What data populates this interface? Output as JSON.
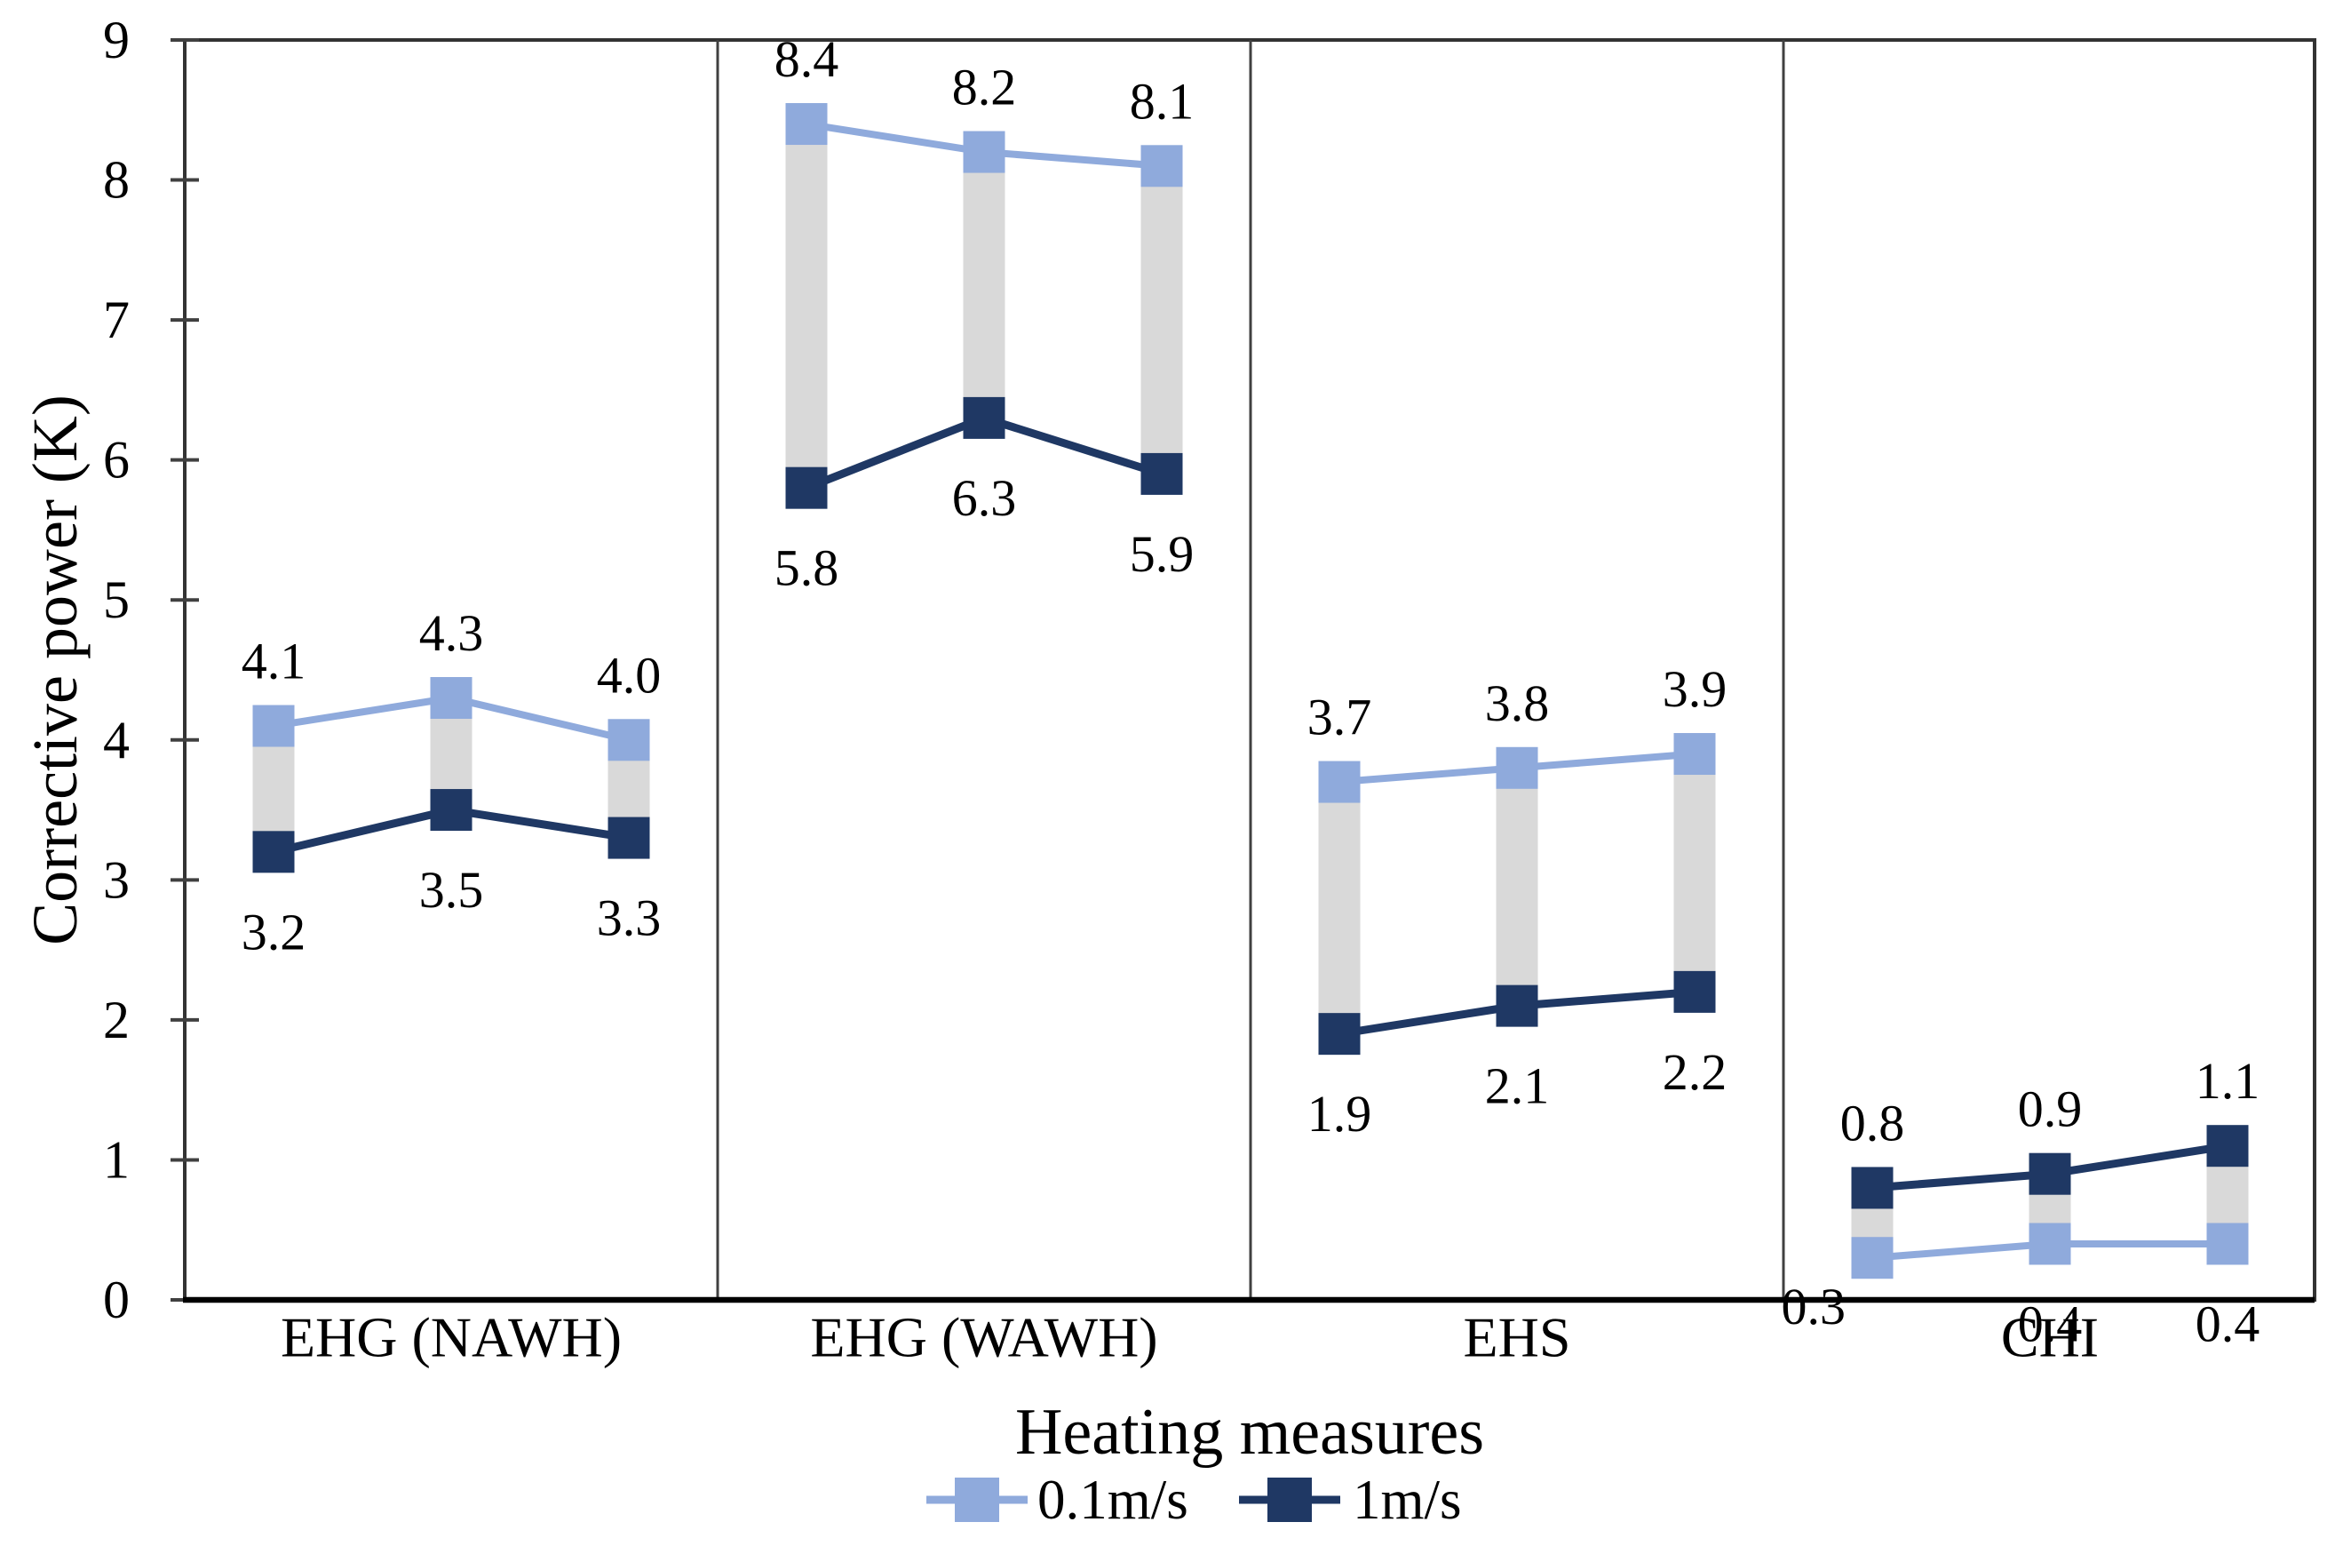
{
  "chart_data": {
    "type": "line",
    "title": "",
    "xlabel": "Heating measures",
    "ylabel": "Corrective power (K)",
    "ylim": [
      0,
      9
    ],
    "ytick_step": 1,
    "ytick_labels": [
      "0",
      "1",
      "2",
      "3",
      "4",
      "5",
      "6",
      "7",
      "8",
      "9"
    ],
    "grid": false,
    "panel_dividers": true,
    "legend_position": "bottom",
    "categories": [
      "EHG (NAWH)",
      "EHG (WAWH)",
      "EHS",
      "CHI"
    ],
    "points_per_category": 3,
    "series": [
      {
        "name": "0.1m/s",
        "color": "#8faadc",
        "marker": "square",
        "values": [
          [
            4.1,
            4.3,
            4.0
          ],
          [
            8.4,
            8.2,
            8.1
          ],
          [
            3.7,
            3.8,
            3.9
          ],
          [
            0.3,
            0.4,
            0.4
          ]
        ],
        "label_positions": [
          [
            "above",
            "above",
            "above"
          ],
          [
            "above",
            "above",
            "above"
          ],
          [
            "above",
            "above",
            "above"
          ],
          [
            "left",
            "below",
            "below"
          ]
        ]
      },
      {
        "name": "1m/s",
        "color": "#1f3864",
        "marker": "square",
        "values": [
          [
            3.2,
            3.5,
            3.3
          ],
          [
            5.8,
            6.3,
            5.9
          ],
          [
            1.9,
            2.1,
            2.2
          ],
          [
            0.8,
            0.9,
            1.1
          ]
        ],
        "label_positions": [
          [
            "below",
            "below",
            "below"
          ],
          [
            "below",
            "below",
            "below"
          ],
          [
            "below",
            "below",
            "below"
          ],
          [
            "above",
            "above",
            "above"
          ]
        ]
      }
    ],
    "updown_bars": true,
    "updown_bar_color": "#d9d9d9",
    "legend": [
      "0.1m/s",
      "1m/s"
    ]
  },
  "colors": {
    "border": "#333333",
    "divider": "#404040",
    "axis_bottom": "#000000",
    "tick": "#404040",
    "text": "#000000",
    "background": "#ffffff"
  }
}
